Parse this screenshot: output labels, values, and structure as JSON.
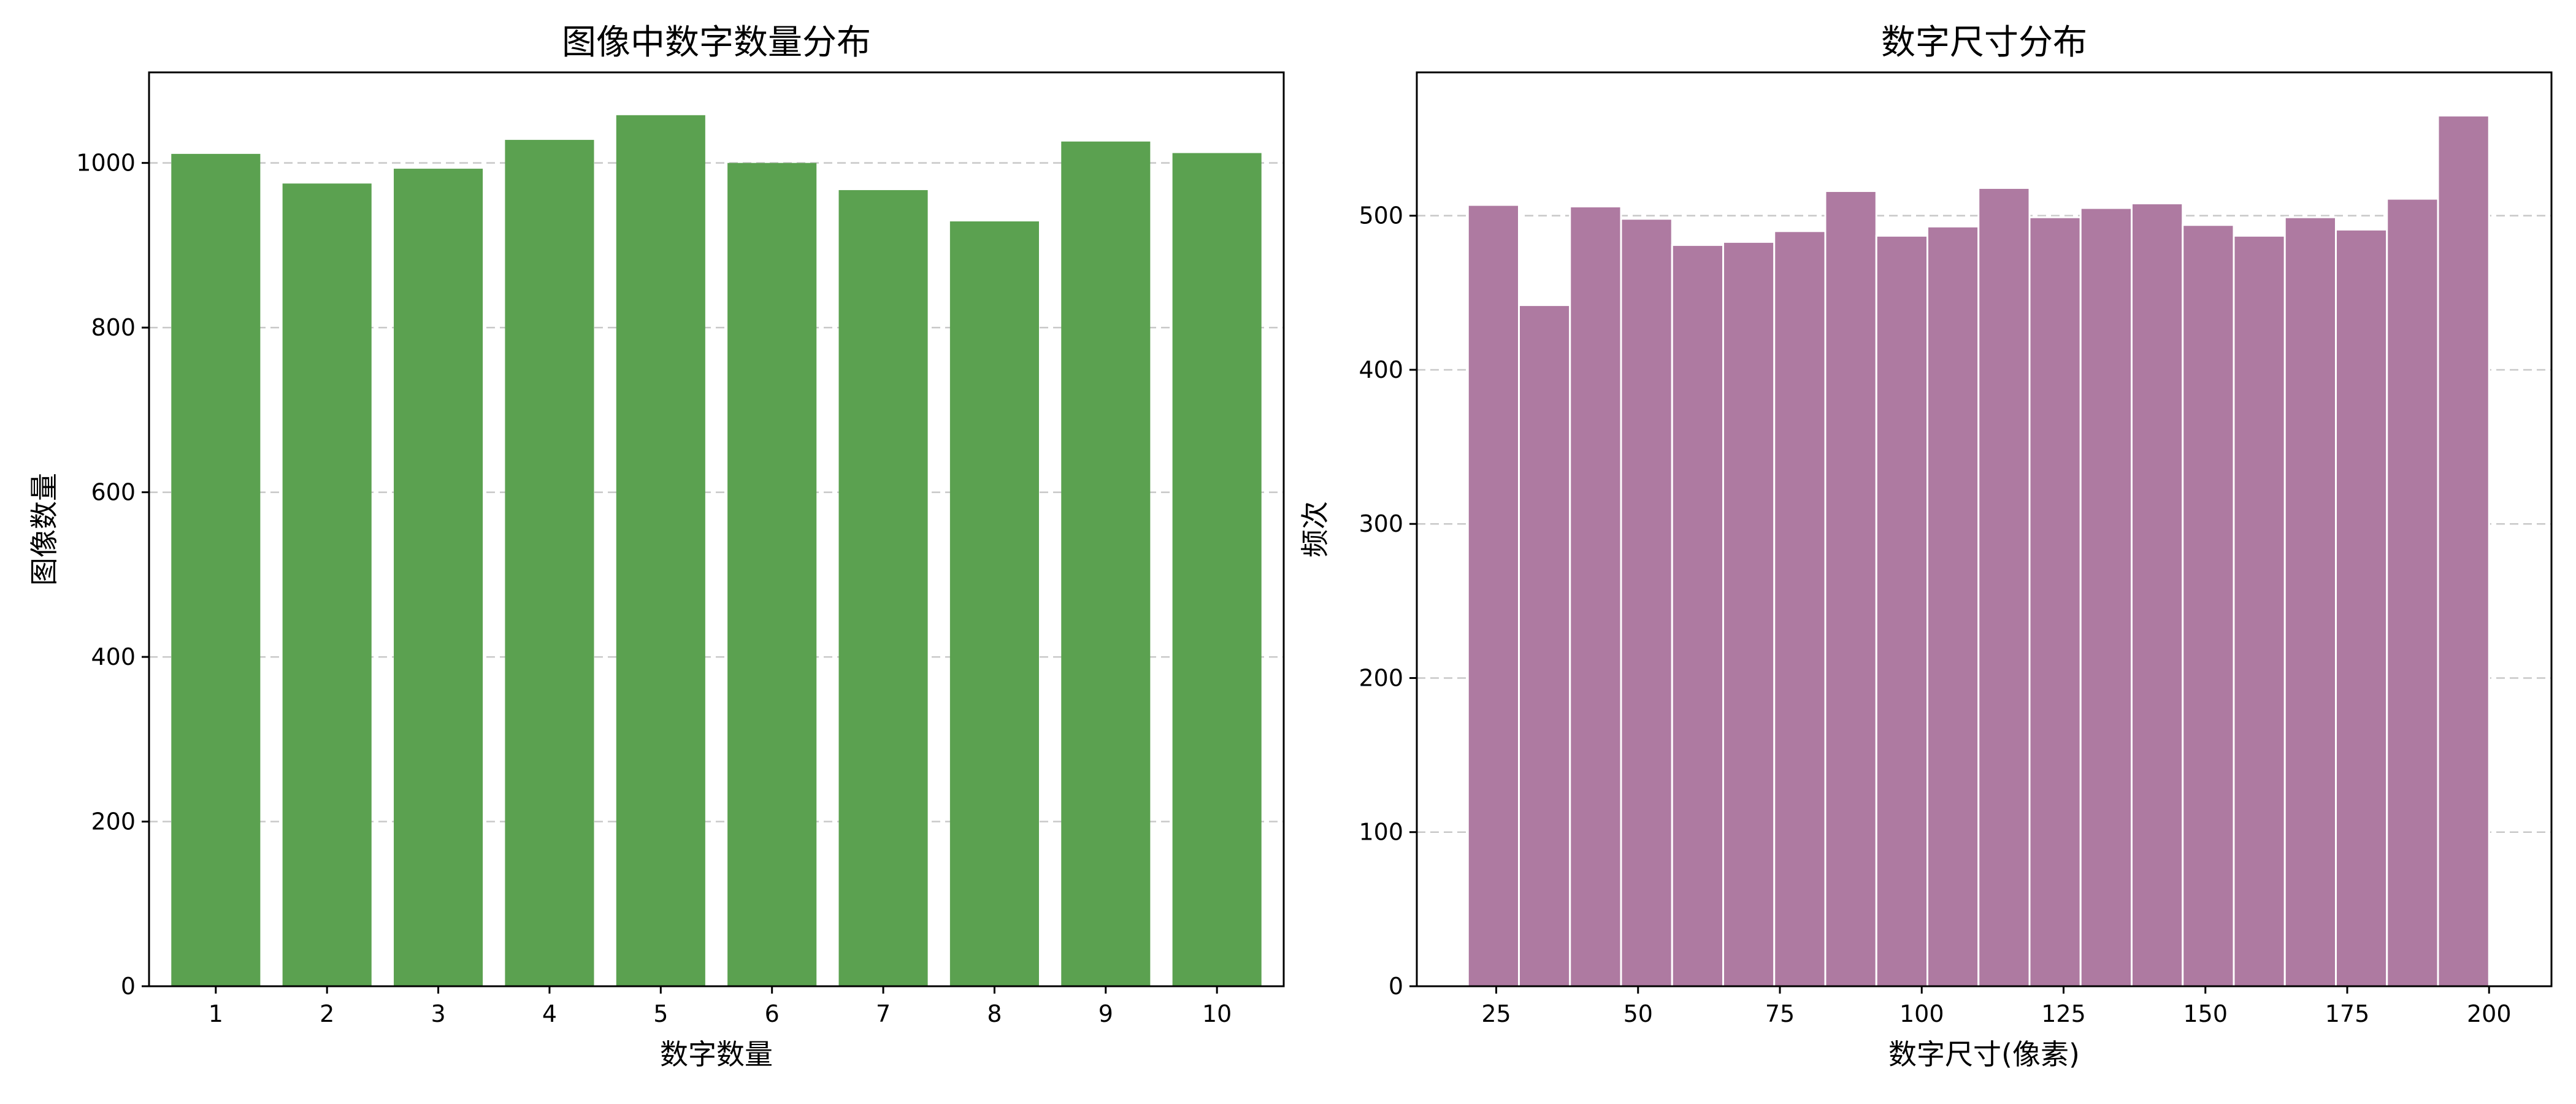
{
  "chart_data": [
    {
      "type": "bar",
      "title": "图像中数字数量分布",
      "xlabel": "数字数量",
      "ylabel": "图像数量",
      "categories": [
        "1",
        "2",
        "3",
        "4",
        "5",
        "6",
        "7",
        "8",
        "9",
        "10"
      ],
      "values": [
        1011,
        975,
        993,
        1028,
        1058,
        1000,
        967,
        929,
        1026,
        1012
      ],
      "ylim": [
        0,
        1110
      ],
      "yticks": [
        0,
        200,
        400,
        600,
        800,
        1000
      ],
      "grid": "y-dashed",
      "color": "#5ba150"
    },
    {
      "type": "histogram",
      "title": "数字尺寸分布",
      "xlabel": "数字尺寸(像素)",
      "ylabel": "频次",
      "bins": [
        {
          "x0": 20,
          "x1": 29,
          "count": 507
        },
        {
          "x0": 29,
          "x1": 38,
          "count": 442
        },
        {
          "x0": 38,
          "x1": 47,
          "count": 506
        },
        {
          "x0": 47,
          "x1": 56,
          "count": 498
        },
        {
          "x0": 56,
          "x1": 65,
          "count": 481
        },
        {
          "x0": 65,
          "x1": 74,
          "count": 483
        },
        {
          "x0": 74,
          "x1": 83,
          "count": 490
        },
        {
          "x0": 83,
          "x1": 92,
          "count": 516
        },
        {
          "x0": 92,
          "x1": 101,
          "count": 487
        },
        {
          "x0": 101,
          "x1": 110,
          "count": 493
        },
        {
          "x0": 110,
          "x1": 119,
          "count": 518
        },
        {
          "x0": 119,
          "x1": 128,
          "count": 499
        },
        {
          "x0": 128,
          "x1": 137,
          "count": 505
        },
        {
          "x0": 137,
          "x1": 146,
          "count": 508
        },
        {
          "x0": 146,
          "x1": 155,
          "count": 494
        },
        {
          "x0": 155,
          "x1": 164,
          "count": 487
        },
        {
          "x0": 164,
          "x1": 173,
          "count": 499
        },
        {
          "x0": 173,
          "x1": 182,
          "count": 491
        },
        {
          "x0": 182,
          "x1": 191,
          "count": 511
        },
        {
          "x0": 191,
          "x1": 200,
          "count": 565
        }
      ],
      "xlim": [
        11,
        211
      ],
      "ylim": [
        0,
        593
      ],
      "xticks": [
        25,
        50,
        75,
        100,
        125,
        150,
        175,
        200
      ],
      "yticks": [
        0,
        100,
        200,
        300,
        400,
        500
      ],
      "grid": "y-dashed",
      "color": "#ae7aa1"
    }
  ]
}
